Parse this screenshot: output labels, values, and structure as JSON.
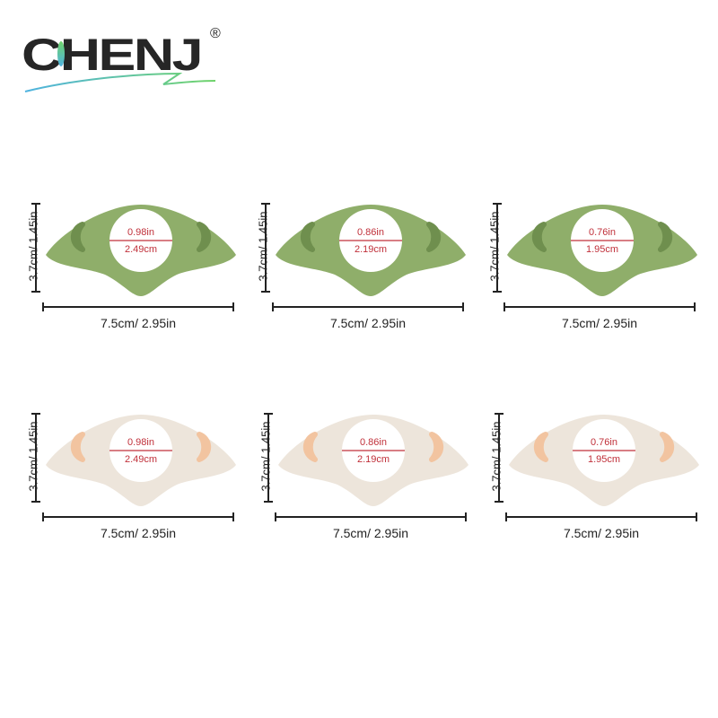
{
  "brand": {
    "name": "CHENJ",
    "mark": "®"
  },
  "colors": {
    "green": "#8fae6a",
    "beige": "#ede5db",
    "hole_green": "#6f8f4e",
    "hole_beige": "#f2c4a0",
    "label_red": "#c0303a"
  },
  "items": [
    {
      "color": "green",
      "inner_in": "0.98in",
      "inner_cm": "2.49cm",
      "width": "7.5cm/ 2.95in",
      "height": "3.7cm/ 1.45in"
    },
    {
      "color": "green",
      "inner_in": "0.86in",
      "inner_cm": "2.19cm",
      "width": "7.5cm/ 2.95in",
      "height": "3.7cm/ 1.45in"
    },
    {
      "color": "green",
      "inner_in": "0.76in",
      "inner_cm": "1.95cm",
      "width": "7.5cm/ 2.95in",
      "height": "3.7cm/ 1.45in"
    },
    {
      "color": "beige",
      "inner_in": "0.98in",
      "inner_cm": "2.49cm",
      "width": "7.5cm/ 2.95in",
      "height": "3.7cm/ 1.45in"
    },
    {
      "color": "beige",
      "inner_in": "0.86in",
      "inner_cm": "2.19cm",
      "width": "7.5cm/ 2.95in",
      "height": "3.7cm/ 1.45in"
    },
    {
      "color": "beige",
      "inner_in": "0.76in",
      "inner_cm": "1.95cm",
      "width": "7.5cm/ 2.95in",
      "height": "3.7cm/ 1.45in"
    }
  ]
}
